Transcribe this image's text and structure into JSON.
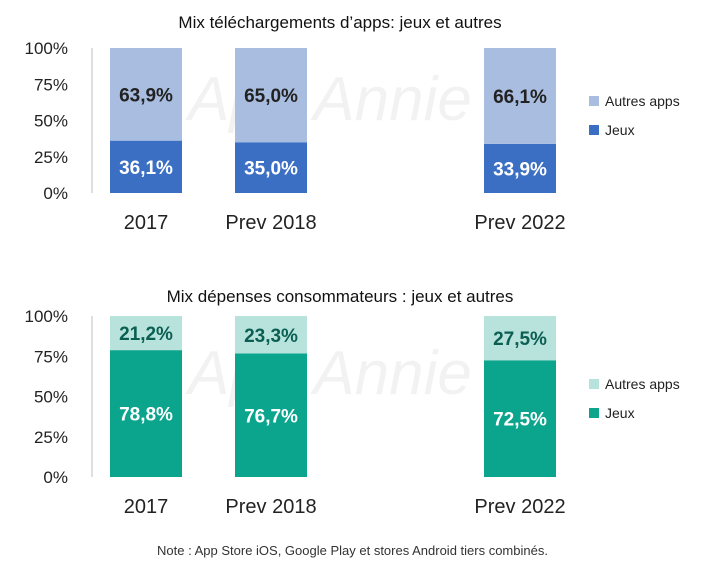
{
  "watermark": "App Annie",
  "footnote": "Note : App Store iOS, Google Play et stores Android tiers combinés.",
  "chart_data": [
    {
      "type": "bar",
      "stacked": true,
      "title": "Mix téléchargements d’apps: jeux et autres",
      "categories": [
        "2017",
        "Prev 2018",
        "Prev 2022"
      ],
      "ylim": [
        0,
        100
      ],
      "yticks": [
        "0%",
        "25%",
        "50%",
        "75%",
        "100%"
      ],
      "grid": false,
      "legend_position": "right",
      "series": [
        {
          "name": "Jeux",
          "values": [
            36.1,
            35.0,
            33.9
          ],
          "labels": [
            "36,1%",
            "35,0%",
            "33,9%"
          ],
          "color": "#3b6fc4",
          "label_color": "#ffffff"
        },
        {
          "name": "Autres apps",
          "values": [
            63.9,
            65.0,
            66.1
          ],
          "labels": [
            "63,9%",
            "65,0%",
            "66,1%"
          ],
          "color": "#a8bde0",
          "label_color": "#222222"
        }
      ]
    },
    {
      "type": "bar",
      "stacked": true,
      "title": "Mix dépenses consommateurs : jeux et autres",
      "categories": [
        "2017",
        "Prev 2018",
        "Prev 2022"
      ],
      "ylim": [
        0,
        100
      ],
      "yticks": [
        "0%",
        "25%",
        "50%",
        "75%",
        "100%"
      ],
      "grid": false,
      "legend_position": "right",
      "series": [
        {
          "name": "Jeux",
          "values": [
            78.8,
            76.7,
            72.5
          ],
          "labels": [
            "78,8%",
            "76,7%",
            "72,5%"
          ],
          "color": "#0aa58c",
          "label_color": "#ffffff"
        },
        {
          "name": "Autres apps",
          "values": [
            21.2,
            23.3,
            27.5
          ],
          "labels": [
            "21,2%",
            "23,3%",
            "27,5%"
          ],
          "color": "#b7e3dc",
          "label_color": "#0b5e52"
        }
      ]
    }
  ]
}
